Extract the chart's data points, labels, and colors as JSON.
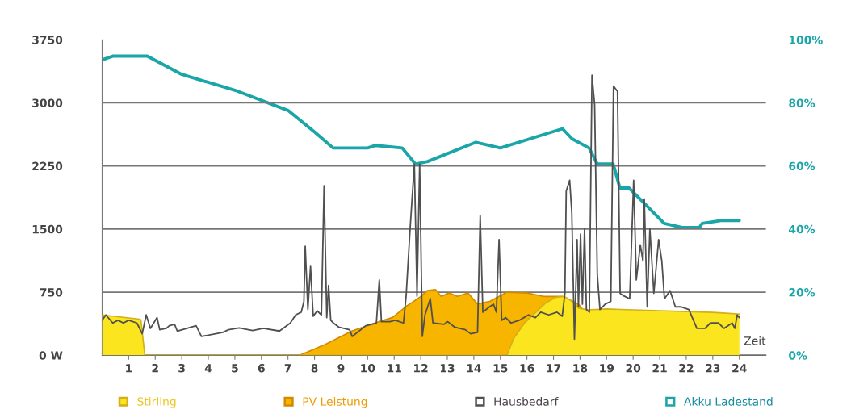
{
  "chart_data": {
    "type": "line",
    "xlabel": "Zeit",
    "xlim": [
      0,
      25
    ],
    "xticks": [
      1,
      2,
      3,
      4,
      5,
      6,
      7,
      8,
      9,
      10,
      11,
      12,
      13,
      14,
      15,
      16,
      17,
      18,
      19,
      20,
      21,
      22,
      23,
      24
    ],
    "ylim": [
      0,
      3750
    ],
    "yticks": [
      {
        "value": 0,
        "label": "0 W"
      },
      750,
      1500,
      2250,
      3000,
      3750
    ],
    "y2lim": [
      0,
      100
    ],
    "y2ticks": [
      {
        "value": 0,
        "label": "0%"
      },
      {
        "value": 20,
        "label": "20%"
      },
      {
        "value": 40,
        "label": "40%"
      },
      {
        "value": 60,
        "label": "60%"
      },
      {
        "value": 80,
        "label": "80%"
      },
      {
        "value": 100,
        "label": "100%"
      }
    ],
    "grid": "y",
    "legend": "bottom left",
    "marker": "none",
    "line_style": "solid",
    "series": [
      {
        "name": "Stirling",
        "type": "area",
        "color": "#fae51e",
        "x": [
          0,
          1.41,
          1.46,
          1.61,
          15.25,
          15.5,
          15.9,
          16.3,
          16.7,
          17.1,
          17.4,
          17.7,
          17.95,
          18.3,
          19,
          20,
          21,
          22,
          23,
          23.5,
          24
        ],
        "values": [
          480,
          430,
          420,
          0,
          0,
          200,
          380,
          500,
          620,
          690,
          700,
          640,
          560,
          540,
          550,
          540,
          530,
          520,
          510,
          500,
          490
        ]
      },
      {
        "name": "PV Leistung",
        "type": "area",
        "color": "#f7b500",
        "x": [
          7.44,
          8.41,
          9.42,
          10.44,
          10.94,
          11.45,
          11.96,
          12.26,
          12.56,
          12.77,
          13.07,
          13.38,
          13.78,
          14.14,
          14.6,
          15.25,
          16.01,
          16.62,
          17.33,
          17.94,
          18.14
        ],
        "values": [
          0,
          130,
          290,
          400,
          450,
          580,
          690,
          770,
          780,
          700,
          740,
          700,
          740,
          610,
          640,
          750,
          740,
          700,
          700,
          610,
          530
        ]
      },
      {
        "name": "Hausbedarf",
        "color": "#505050",
        "x": [
          0,
          0.14,
          0.4,
          0.6,
          0.8,
          1.0,
          1.31,
          1.51,
          1.66,
          1.82,
          2.07,
          2.17,
          2.42,
          2.53,
          2.73,
          2.83,
          3.54,
          3.74,
          4.55,
          4.76,
          5.16,
          5.67,
          6.07,
          6.68,
          7.09,
          7.29,
          7.5,
          7.6,
          7.65,
          7.75,
          7.85,
          7.95,
          8.1,
          8.26,
          8.36,
          8.46,
          8.53,
          8.61,
          8.71,
          8.91,
          9.32,
          9.42,
          9.93,
          10.33,
          10.44,
          10.52,
          10.84,
          11.04,
          11.35,
          11.45,
          11.6,
          11.76,
          11.86,
          11.96,
          12.06,
          12.16,
          12.36,
          12.46,
          12.87,
          13.02,
          13.27,
          13.68,
          13.88,
          14.14,
          14.24,
          14.34,
          14.59,
          14.74,
          14.85,
          14.95,
          15.05,
          15.2,
          15.4,
          15.71,
          16.06,
          16.32,
          16.52,
          16.82,
          17.13,
          17.33,
          17.43,
          17.48,
          17.61,
          17.69,
          17.79,
          17.89,
          17.94,
          18.02,
          18.09,
          18.17,
          18.24,
          18.35,
          18.45,
          18.55,
          18.65,
          18.75,
          18.95,
          19.16,
          19.26,
          19.41,
          19.51,
          19.66,
          19.87,
          20.02,
          20.12,
          20.27,
          20.37,
          20.42,
          20.53,
          20.63,
          20.78,
          20.96,
          21.08,
          21.18,
          21.39,
          21.59,
          21.79,
          22.1,
          22.4,
          22.71,
          22.91,
          23.21,
          23.42,
          23.73,
          23.83,
          23.92,
          24
        ],
        "values": [
          416,
          480,
          384,
          416,
          384,
          416,
          384,
          256,
          480,
          320,
          448,
          304,
          320,
          352,
          368,
          288,
          352,
          224,
          272,
          304,
          326,
          294,
          320,
          288,
          384,
          480,
          512,
          640,
          1296,
          544,
          1056,
          464,
          528,
          480,
          2016,
          448,
          832,
          416,
          384,
          336,
          304,
          224,
          352,
          384,
          896,
          400,
          400,
          416,
          384,
          704,
          1504,
          2272,
          704,
          2272,
          224,
          480,
          672,
          384,
          368,
          400,
          336,
          304,
          256,
          272,
          1664,
          512,
          576,
          608,
          512,
          1376,
          416,
          448,
          384,
          416,
          480,
          448,
          512,
          480,
          512,
          464,
          736,
          1952,
          2080,
          1696,
          192,
          1376,
          576,
          1440,
          608,
          1500,
          544,
          512,
          3328,
          2976,
          960,
          544,
          608,
          640,
          3200,
          3136,
          736,
          704,
          672,
          2080,
          896,
          1312,
          1120,
          1856,
          576,
          1500,
          736,
          1376,
          1120,
          672,
          768,
          576,
          576,
          544,
          320,
          320,
          384,
          384,
          320,
          384,
          320,
          480,
          448
        ]
      },
      {
        "name": "Akku Ladestand",
        "axis": "y2",
        "color": "#1aa5a8",
        "x": [
          0,
          0.4,
          1.7,
          3,
          5,
          7,
          8,
          8.7,
          10,
          10.3,
          11.3,
          11.8,
          12.26,
          14.08,
          15,
          17.34,
          17.7,
          18.34,
          18.65,
          19.25,
          19.5,
          19.85,
          21.17,
          21.84,
          22.5,
          22.6,
          23.3,
          24
        ],
        "values": [
          93.6,
          94.8,
          94.8,
          89,
          84,
          77.6,
          70.8,
          65.7,
          65.7,
          66.5,
          65.7,
          60.6,
          61.4,
          67.5,
          65.7,
          71.8,
          68.6,
          65.7,
          60.6,
          60.6,
          53,
          53,
          41.8,
          40.5,
          40.5,
          41.8,
          42.7,
          42.7
        ]
      }
    ]
  }
}
